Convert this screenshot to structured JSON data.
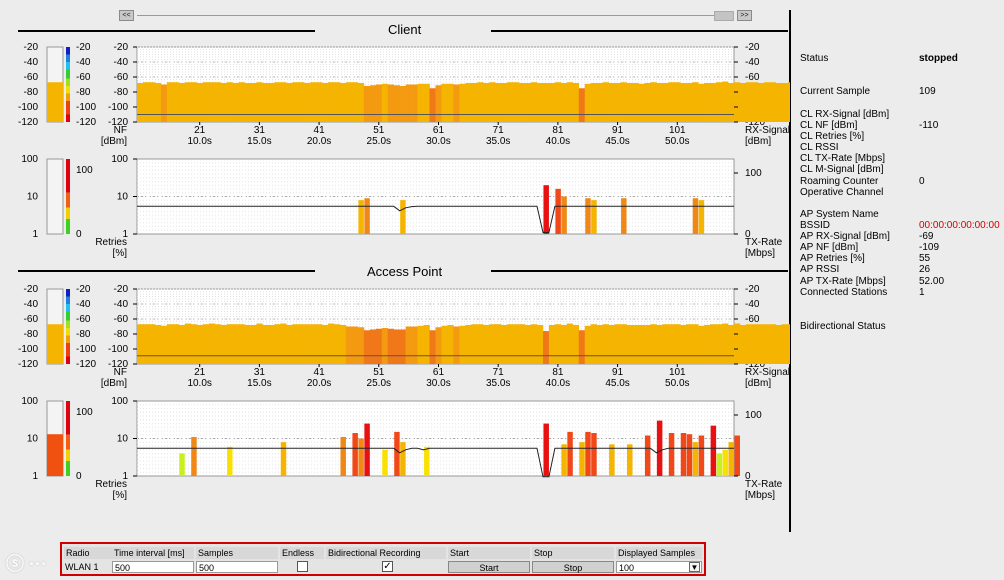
{
  "scrollbar": {
    "left": "<<",
    "right": ">>"
  },
  "client": {
    "title": "Client",
    "signal_yticks": [
      "-20",
      "-40",
      "-60",
      "-80",
      "-100",
      "-120"
    ],
    "nf_label": [
      "NF",
      "[dBm]"
    ],
    "rx_label": [
      "RX-Signal",
      "[dBm]"
    ],
    "xticks": [
      {
        "n": "21",
        "t": "10.0s"
      },
      {
        "n": "31",
        "t": "15.0s"
      },
      {
        "n": "41",
        "t": "20.0s"
      },
      {
        "n": "51",
        "t": "25.0s"
      },
      {
        "n": "61",
        "t": "30.0s"
      },
      {
        "n": "71",
        "t": "35.0s"
      },
      {
        "n": "81",
        "t": "40.0s"
      },
      {
        "n": "91",
        "t": "45.0s"
      },
      {
        "n": "101",
        "t": "50.0s"
      }
    ],
    "retry_yticks": [
      "100",
      "10",
      "1"
    ],
    "rate_yticks": [
      "100",
      "0"
    ],
    "retries_label": [
      "Retries",
      "[%]"
    ],
    "txrate_label": [
      "TX-Rate",
      "[Mbps]"
    ]
  },
  "ap": {
    "title": "Access Point",
    "signal_yticks": [
      "-20",
      "-40",
      "-60",
      "-80",
      "-100",
      "-120"
    ],
    "nf_label": [
      "NF",
      "[dBm]"
    ],
    "rx_label": [
      "RX-Signal",
      "[dBm]"
    ],
    "xticks": [
      {
        "n": "21",
        "t": "10.0s"
      },
      {
        "n": "31",
        "t": "15.0s"
      },
      {
        "n": "41",
        "t": "20.0s"
      },
      {
        "n": "51",
        "t": "25.0s"
      },
      {
        "n": "61",
        "t": "30.0s"
      },
      {
        "n": "71",
        "t": "35.0s"
      },
      {
        "n": "81",
        "t": "40.0s"
      },
      {
        "n": "91",
        "t": "45.0s"
      },
      {
        "n": "101",
        "t": "50.0s"
      }
    ],
    "retry_yticks": [
      "100",
      "10",
      "1"
    ],
    "rate_yticks": [
      "100",
      "0"
    ],
    "retries_label": [
      "Retries",
      "[%]"
    ],
    "txrate_label": [
      "TX-Rate",
      "[Mbps]"
    ]
  },
  "status": {
    "status_label": "Status",
    "status_value": "stopped",
    "current_sample_label": "Current Sample",
    "current_sample_value": "109",
    "cl_rx_signal": "CL RX-Signal [dBm]",
    "cl_nf": "CL NF [dBm]",
    "cl_nf_value": "-110",
    "cl_retries": "CL Retries [%]",
    "cl_rssi": "CL RSSI",
    "cl_tx_rate": "CL TX-Rate [Mbps]",
    "cl_m_signal": "CL M-Signal [dBm]",
    "roaming_counter": "Roaming Counter",
    "roaming_counter_value": "0",
    "operative_channel": "Operative Channel",
    "ap_system_name": "AP System Name",
    "bssid": "BSSID",
    "bssid_value": "00:00:00:00:00:00",
    "ap_rx_signal": "AP RX-Signal [dBm]",
    "ap_rx_signal_value": "-69",
    "ap_nf": "AP NF [dBm]",
    "ap_nf_value": "-109",
    "ap_retries": "AP Retries [%]",
    "ap_retries_value": "55",
    "ap_rssi": "AP RSSI",
    "ap_rssi_value": "26",
    "ap_tx_rate": "AP TX-Rate [Mbps]",
    "ap_tx_rate_value": "52.00",
    "connected_stations": "Connected Stations",
    "connected_stations_value": "1",
    "bidirectional_status": "Bidirectional Status"
  },
  "controls": {
    "radio_label": "Radio",
    "radio_value": "WLAN 1",
    "interval_label": "Time interval [ms]",
    "interval_value": "500",
    "samples_label": "Samples",
    "samples_value": "500",
    "endless_label": "Endless",
    "endless_checked": false,
    "bidir_label": "Bidirectional Recording",
    "bidir_checked": true,
    "start_label": "Start",
    "start_button": "Start",
    "stop_label": "Stop",
    "stop_button": "Stop",
    "displayed_label": "Displayed Samples",
    "displayed_value": "100"
  },
  "colors": {
    "bg": "#ececec",
    "red": "#e81010",
    "orange": "#f08010",
    "yellow": "#f8e000",
    "amber": "#f4b800"
  },
  "chart_data": [
    {
      "type": "bar",
      "title": "Client RX-Signal / NF",
      "ylabel": "dBm",
      "ylim": [
        -120,
        -20
      ],
      "xrange": [
        11,
        110
      ],
      "values": [
        -68,
        -67,
        -67,
        -68,
        -70,
        -67,
        -67,
        -68,
        -67,
        -67,
        -68,
        -67,
        -67,
        -67,
        -68,
        -67,
        -68,
        -67,
        -68,
        -68,
        -67,
        -68,
        -68,
        -67,
        -67,
        -68,
        -67,
        -67,
        -68,
        -67,
        -67,
        -68,
        -67,
        -67,
        -68,
        -67,
        -67,
        -68,
        -72,
        -71,
        -70,
        -69,
        -70,
        -71,
        -72,
        -70,
        -70,
        -69,
        -69,
        -75,
        -71,
        -69,
        -69,
        -70,
        -69,
        -68,
        -68,
        -67,
        -68,
        -67,
        -68,
        -68,
        -67,
        -67,
        -68,
        -68,
        -67,
        -68,
        -68,
        -68,
        -67,
        -68,
        -67,
        -68,
        -75,
        -69,
        -68,
        -68,
        -67,
        -68,
        -68,
        -67,
        -68,
        -68,
        -69,
        -68,
        -67,
        -68,
        -68,
        -67,
        -67,
        -68,
        -68,
        -67,
        -69,
        -68,
        -68,
        -67,
        -66,
        -68,
        -67,
        -68,
        -67,
        -67,
        -68,
        -67,
        -67,
        -68,
        -68,
        -67
      ],
      "nf_line": -110
    },
    {
      "type": "bar",
      "title": "Client Retries / TX-Rate",
      "ylabel": "Retries [%]",
      "yscale": "log",
      "ylim": [
        1,
        100
      ],
      "retries": [
        {
          "x": 48,
          "v": 8
        },
        {
          "x": 49,
          "v": 9
        },
        {
          "x": 55,
          "v": 8
        },
        {
          "x": 79,
          "v": 20
        },
        {
          "x": 81,
          "v": 16
        },
        {
          "x": 82,
          "v": 10
        },
        {
          "x": 86,
          "v": 9
        },
        {
          "x": 87,
          "v": 8
        },
        {
          "x": 92,
          "v": 9
        },
        {
          "x": 104,
          "v": 9
        },
        {
          "x": 105,
          "v": 8
        }
      ],
      "tx_rate_note": "flat line near 52 Mbps with dips at samples 55 and 79"
    },
    {
      "type": "bar",
      "title": "Access Point RX-Signal / NF",
      "ylabel": "dBm",
      "ylim": [
        -120,
        -20
      ],
      "xrange": [
        11,
        110
      ],
      "nf_line": -109
    },
    {
      "type": "bar",
      "title": "Access Point Retries / TX-Rate",
      "ylabel": "Retries [%]",
      "yscale": "log",
      "ylim": [
        1,
        100
      ],
      "retries": [
        {
          "x": 18,
          "v": 4
        },
        {
          "x": 20,
          "v": 11
        },
        {
          "x": 26,
          "v": 6
        },
        {
          "x": 35,
          "v": 8
        },
        {
          "x": 45,
          "v": 11
        },
        {
          "x": 47,
          "v": 14
        },
        {
          "x": 48,
          "v": 10
        },
        {
          "x": 49,
          "v": 25
        },
        {
          "x": 52,
          "v": 5
        },
        {
          "x": 54,
          "v": 15
        },
        {
          "x": 55,
          "v": 8
        },
        {
          "x": 59,
          "v": 6
        },
        {
          "x": 79,
          "v": 25
        },
        {
          "x": 82,
          "v": 7
        },
        {
          "x": 83,
          "v": 15
        },
        {
          "x": 85,
          "v": 8
        },
        {
          "x": 86,
          "v": 15
        },
        {
          "x": 87,
          "v": 14
        },
        {
          "x": 90,
          "v": 7
        },
        {
          "x": 93,
          "v": 7
        },
        {
          "x": 96,
          "v": 12
        },
        {
          "x": 98,
          "v": 30
        },
        {
          "x": 100,
          "v": 14
        },
        {
          "x": 102,
          "v": 14
        },
        {
          "x": 103,
          "v": 13
        },
        {
          "x": 104,
          "v": 8
        },
        {
          "x": 105,
          "v": 12
        },
        {
          "x": 107,
          "v": 22
        },
        {
          "x": 108,
          "v": 4
        },
        {
          "x": 109,
          "v": 5
        },
        {
          "x": 110,
          "v": 8
        },
        {
          "x": 111,
          "v": 12
        }
      ],
      "tx_rate_note": "flat line near 52 Mbps with dips at samples 55, 79 and 98"
    }
  ]
}
